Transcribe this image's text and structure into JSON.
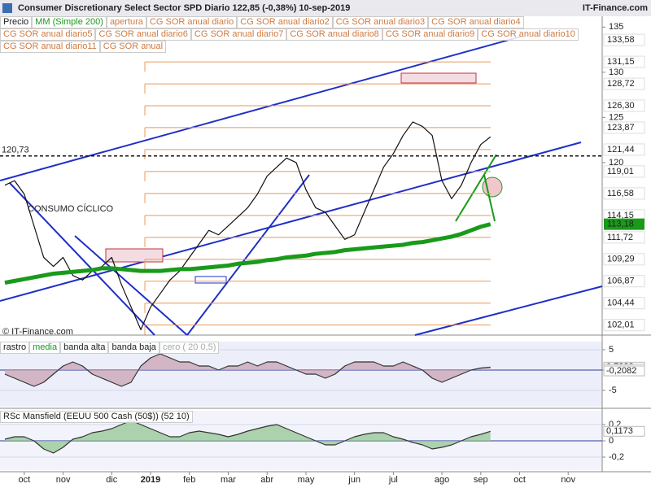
{
  "header": {
    "title": "Consumer Discretionary Select Sector SPD   Diario   122,85 (-0,38%)   10-sep-2019",
    "brand": "IT-Finance.com"
  },
  "chart_data": [
    {
      "type": "line",
      "tags": [
        "Precio",
        "MM (Simple 200)",
        "apertura",
        "CG SOR anual diario",
        "CG SOR anual diario2",
        "CG SOR anual diario3",
        "CG SOR anual diario4",
        "CG SOR anual diario5",
        "CG SOR anual diario6",
        "CG SOR anual diario7",
        "CG SOR anual diario8",
        "CG SOR anual diario9",
        "CG SOR anual diario10",
        "CG SOR anual diario11",
        "CG SOR anual"
      ],
      "annotations": [
        "CONSUMO CÍCLICO",
        "© IT-Finance.com"
      ],
      "reference_line": {
        "value": 120.73,
        "label": "120,73"
      },
      "categories": [
        null,
        null,
        "oct",
        null,
        null,
        null,
        "nov",
        null,
        null,
        null,
        null,
        "dic",
        null,
        null,
        null,
        "2019",
        null,
        null,
        null,
        "feb",
        null,
        null,
        null,
        "mar",
        null,
        null,
        null,
        "abr",
        null,
        null,
        null,
        "may",
        null,
        null,
        null,
        null,
        "jun",
        null,
        null,
        null,
        "jul",
        null,
        null,
        null,
        null,
        "ago",
        null,
        null,
        null,
        "sep",
        null,
        null,
        null,
        "oct",
        null,
        null,
        null,
        null,
        "nov",
        null,
        null,
        null
      ],
      "series": [
        {
          "name": "Precio",
          "color": "#111111",
          "values": [
            117.5,
            118.0,
            116.5,
            113,
            109.5,
            108.5,
            109.5,
            107.5,
            107,
            108,
            108.5,
            109.5,
            106.5,
            104,
            101.5,
            104,
            105.5,
            107,
            108,
            109.5,
            111,
            112.5,
            112,
            113,
            114,
            115,
            116.5,
            118.5,
            119.5,
            120.5,
            120,
            117,
            115,
            114.5,
            113,
            111.5,
            112,
            114.5,
            117,
            119.5,
            121,
            123,
            124.5,
            124,
            123,
            118,
            116,
            117.5,
            120,
            122,
            122.85,
            null,
            null,
            null,
            null,
            null,
            null,
            null,
            null,
            null,
            null,
            null
          ]
        },
        {
          "name": "MM (Simple 200)",
          "color": "#1a9a1a",
          "last_label": "113,18",
          "values": [
            106.7,
            106.9,
            107.1,
            107.3,
            107.5,
            107.7,
            107.8,
            107.9,
            108.0,
            108.1,
            108.3,
            108.3,
            108.2,
            108.1,
            108.0,
            108.0,
            108.0,
            108.1,
            108.2,
            108.2,
            108.3,
            108.4,
            108.5,
            108.6,
            108.8,
            108.9,
            109.0,
            109.2,
            109.3,
            109.5,
            109.6,
            109.7,
            109.9,
            110.0,
            110.1,
            110.3,
            110.4,
            110.5,
            110.6,
            110.7,
            110.8,
            110.9,
            111.1,
            111.2,
            111.4,
            111.6,
            111.8,
            112.1,
            112.5,
            112.9,
            113.18,
            null,
            null,
            null,
            null,
            null,
            null,
            null,
            null,
            null,
            null,
            null
          ]
        }
      ],
      "ylim": [
        100.9,
        136.2
      ],
      "yticks": [
        120,
        125,
        130,
        135
      ],
      "levels": [
        {
          "value": 133.58,
          "label": "133,58"
        },
        {
          "value": 131.15,
          "label": "131,15"
        },
        {
          "value": 128.72,
          "label": "128,72"
        },
        {
          "value": 126.3,
          "label": "126,30"
        },
        {
          "value": 123.87,
          "label": "123,87"
        },
        {
          "value": 121.44,
          "label": "121,44"
        },
        {
          "value": 119.01,
          "label": "119,01"
        },
        {
          "value": 116.58,
          "label": "116,58"
        },
        {
          "value": 114.15,
          "label": "114,15"
        },
        {
          "value": 111.72,
          "label": "111,72"
        },
        {
          "value": 109.29,
          "label": "109,29"
        },
        {
          "value": 106.87,
          "label": "106,87"
        },
        {
          "value": 104.44,
          "label": "104,44"
        },
        {
          "value": 102.01,
          "label": "102,01"
        }
      ],
      "level_color": "#e89a5a"
    },
    {
      "type": "area",
      "tags": [
        "rastro",
        "media",
        "banda alta",
        "banda baja",
        "cero ( 20 0,5)"
      ],
      "series": [
        {
          "name": "rastro",
          "color": "#333333",
          "values": [
            -1,
            -2,
            -3,
            -4,
            -3,
            -1,
            1,
            2,
            1,
            -1,
            -2,
            -3,
            -4,
            -3,
            1,
            3,
            4,
            3,
            2,
            2,
            1,
            1,
            0,
            1,
            1,
            2,
            1,
            2,
            2,
            1,
            0,
            -1,
            -1,
            -2,
            -1,
            1,
            2,
            2,
            2,
            1,
            1,
            2,
            1,
            0,
            -2,
            -3,
            -2,
            -1,
            0,
            0.5,
            0.7322,
            null,
            null,
            null,
            null,
            null,
            null,
            null,
            null,
            null,
            null,
            null
          ]
        }
      ],
      "markers": [
        {
          "value": 0.7322,
          "label": "0,7322"
        },
        {
          "value": 0.2164,
          "label": "0,2164"
        },
        {
          "value": -0.2082,
          "label": "-0,2082"
        }
      ],
      "ylim": [
        -9,
        7
      ],
      "yticks": [
        5,
        0,
        -5
      ]
    },
    {
      "type": "area",
      "tags": [
        "RSc Mansfield (EEUU 500 Cash (50$)) (52 10)"
      ],
      "series": [
        {
          "name": "RSc Mansfield",
          "color": "#333333",
          "values": [
            0.02,
            0.05,
            0.05,
            0.0,
            -0.1,
            -0.15,
            -0.08,
            0.02,
            0.05,
            0.1,
            0.12,
            0.15,
            0.2,
            0.25,
            0.2,
            0.15,
            0.1,
            0.05,
            0.05,
            0.1,
            0.12,
            0.1,
            0.08,
            0.05,
            0.08,
            0.12,
            0.15,
            0.18,
            0.2,
            0.15,
            0.1,
            0.05,
            0.0,
            -0.05,
            -0.05,
            0.0,
            0.05,
            0.08,
            0.1,
            0.1,
            0.05,
            0.02,
            -0.02,
            -0.05,
            -0.1,
            -0.08,
            -0.05,
            0.0,
            0.05,
            0.08,
            0.1173,
            null,
            null,
            null,
            null,
            null,
            null,
            null,
            null,
            null,
            null,
            null
          ]
        }
      ],
      "markers": [
        {
          "value": 0.1173,
          "label": "0,1173"
        }
      ],
      "ylim": [
        -0.36,
        0.37
      ],
      "yticks": [
        {
          "value": 0.2,
          "label": "0,2"
        },
        0,
        {
          "value": -0.2,
          "label": "-0,2"
        }
      ]
    }
  ]
}
